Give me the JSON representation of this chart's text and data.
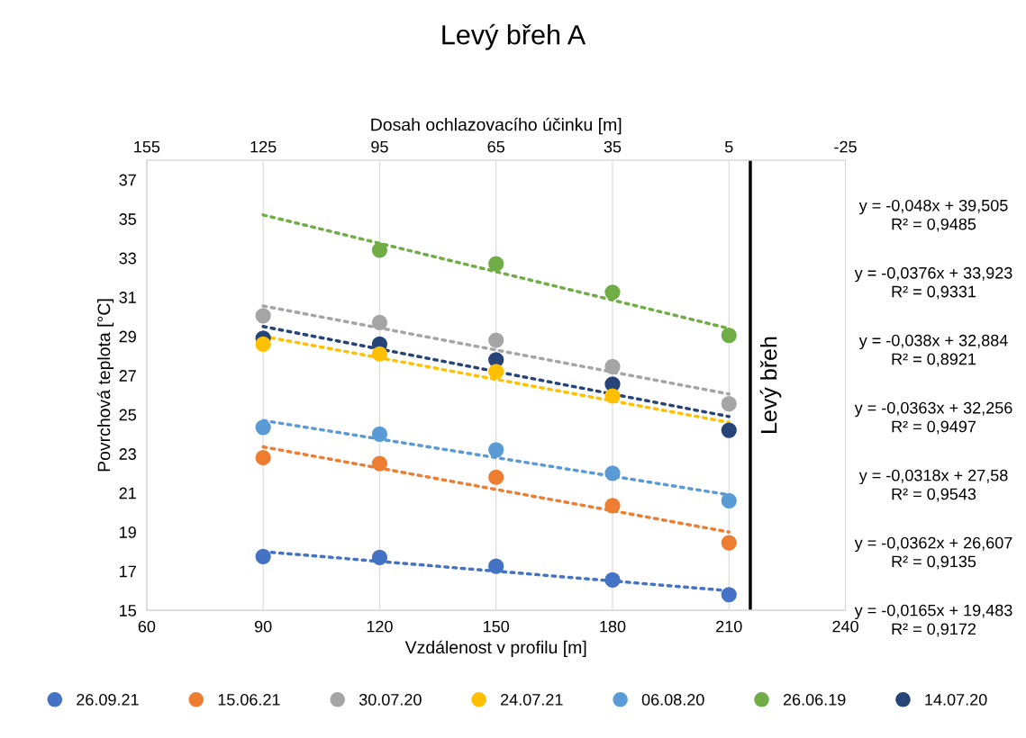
{
  "chart_data": {
    "type": "scatter",
    "title": "Levý břeh A",
    "xlabel": "Vzdálenost v profilu [m]",
    "ylabel": "Povrchová teplota [°C]",
    "x2label": "Dosah ochlazovacího účinku [m]",
    "x": [
      90,
      120,
      150,
      180,
      210
    ],
    "xlim": [
      60,
      240
    ],
    "xticks": [
      60,
      90,
      120,
      150,
      180,
      210,
      240
    ],
    "x2lim": [
      155,
      -25
    ],
    "x2ticks": [
      155,
      125,
      95,
      65,
      35,
      5,
      -25
    ],
    "ylim": [
      15,
      38
    ],
    "yticks": [
      15,
      17,
      19,
      21,
      23,
      25,
      27,
      29,
      31,
      33,
      35,
      37
    ],
    "grid": "x",
    "legend": "bottom",
    "marker": "circle",
    "series": [
      {
        "name": "26.09.21",
        "color": "#4472c4",
        "values": [
          17.75,
          17.7,
          17.25,
          16.55,
          15.8
        ]
      },
      {
        "name": "15.06.21",
        "color": "#ed7d31",
        "values": [
          22.8,
          22.5,
          21.8,
          20.35,
          18.45
        ]
      },
      {
        "name": "30.07.20",
        "color": "#a5a5a5",
        "values": [
          30.05,
          29.7,
          28.8,
          27.45,
          25.55
        ]
      },
      {
        "name": "24.07.21",
        "color": "#ffc000",
        "values": [
          28.6,
          28.1,
          27.2,
          25.95,
          null
        ]
      },
      {
        "name": "06.08.20",
        "color": "#5b9bd5",
        "values": [
          24.35,
          24.0,
          23.2,
          22.0,
          20.6
        ]
      },
      {
        "name": "26.06.19",
        "color": "#70ad47",
        "values": [
          null,
          33.4,
          32.7,
          31.25,
          29.05
        ]
      },
      {
        "name": "14.07.20",
        "color": "#264478",
        "values": [
          28.9,
          28.6,
          27.8,
          26.55,
          24.2
        ]
      },
      {
        "type": "line",
        "color": "#4472c4",
        "values": [
          18.0,
          null,
          null,
          null,
          16.0
        ],
        "marker": "none",
        "line_style": "dotted"
      },
      {
        "type": "line",
        "color": "#ed7d31",
        "values": [
          23.35,
          null,
          null,
          null,
          19.0
        ],
        "marker": "none",
        "line_style": "dotted"
      },
      {
        "type": "line",
        "color": "#a5a5a5",
        "values": [
          30.55,
          null,
          null,
          null,
          26.05
        ],
        "marker": "none",
        "line_style": "dotted"
      },
      {
        "type": "line",
        "color": "#ffc000",
        "values": [
          29.0,
          null,
          null,
          null,
          24.6
        ],
        "marker": "none",
        "line_style": "dotted"
      },
      {
        "type": "line",
        "color": "#5b9bd5",
        "values": [
          24.7,
          null,
          null,
          null,
          20.9
        ],
        "marker": "none",
        "line_style": "dotted"
      },
      {
        "type": "line",
        "color": "#70ad47",
        "values": [
          35.2,
          null,
          null,
          null,
          29.4
        ],
        "marker": "none",
        "line_style": "dotted"
      },
      {
        "type": "line",
        "color": "#264478",
        "values": [
          29.5,
          null,
          null,
          null,
          24.9
        ],
        "marker": "none",
        "line_style": "dotted"
      }
    ],
    "ref_lines": [
      {
        "axis": "x",
        "value": 215.5,
        "label": "Levý břeh",
        "color": "#000000"
      }
    ],
    "annotations": [
      "y = -0,048x + 39,505\nR² = 0,9485",
      "y = -0,0376x + 33,923\nR² = 0,9331",
      "y = -0,038x + 32,884\nR² = 0,8921",
      "y = -0,0363x + 32,256\nR² = 0,9497",
      "y = -0,0318x + 27,58\nR² = 0,9543",
      "y = -0,0362x + 26,607\nR² = 0,9135",
      "y = -0,0165x + 19,483\nR² = 0,9172"
    ]
  }
}
